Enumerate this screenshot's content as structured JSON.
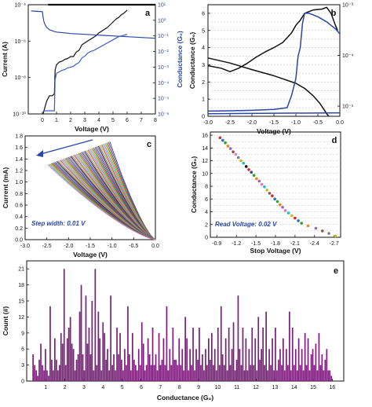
{
  "chart_data": [
    {
      "panel": "a",
      "type": "line",
      "label": "a",
      "xlabel": "Voltage (V)",
      "ylabel_left": "Current (A)",
      "ylabel_right": "Conductance (G₀)",
      "xlim": [
        -1,
        8
      ],
      "x_ticks": [
        "0",
        "1",
        "2",
        "3",
        "4",
        "5",
        "6",
        "7",
        "8"
      ],
      "ylim_left_log10": [
        -10,
        -4
      ],
      "y_left_ticks": [
        "10⁻¹⁰",
        "10⁻⁸",
        "10⁻⁶",
        "10⁻⁴"
      ],
      "ylim_right_log10": [
        -6,
        1
      ],
      "y_right_ticks": [
        "10⁻⁶",
        "10⁻⁵",
        "10⁻⁴",
        "10⁻³",
        "10⁻²",
        "10⁻¹",
        "10⁰",
        "10¹"
      ],
      "y_scale": "log",
      "series": [
        {
          "axis": "left",
          "color": "#111111",
          "x": [
            0.05,
            0.3,
            0.5,
            0.7,
            0.85,
            0.9,
            1.0,
            1.2,
            1.4,
            1.6,
            1.8,
            2.0,
            2.2,
            2.4,
            2.6,
            2.8,
            3.0,
            3.2,
            3.4,
            3.6,
            3.8,
            4.0,
            4.2,
            4.4,
            4.6,
            4.8,
            5.0,
            5.2,
            5.4,
            5.6,
            5.8,
            6.0
          ],
          "y_log10": [
            -10,
            -9.3,
            -9.0,
            -9.0,
            -8.9,
            -7.6,
            -7.3,
            -7.15,
            -7.1,
            -7.0,
            -6.95,
            -6.85,
            -6.85,
            -6.6,
            -6.5,
            -6.2,
            -6.1,
            -6.0,
            -5.9,
            -5.8,
            -5.7,
            -5.55,
            -5.45,
            -5.35,
            -5.25,
            -5.1,
            -4.95,
            -4.8,
            -4.7,
            -4.55,
            -4.45,
            -4.3
          ]
        },
        {
          "axis": "left",
          "color": "#111111",
          "x": [
            0.4,
            8.0
          ],
          "y_log10": [
            -4.0,
            -4.0
          ]
        },
        {
          "axis": "right",
          "color": "#2b45a8",
          "x": [
            -0.8,
            0.0,
            0.05,
            0.1,
            0.2,
            0.3,
            0.5,
            0.8,
            1.0,
            1.5,
            2.0,
            3.0,
            4.0,
            5.0,
            6.0,
            7.0,
            8.0
          ],
          "y_log10": [
            0.6,
            0.55,
            0.2,
            -0.05,
            -0.3,
            -0.45,
            -0.6,
            -0.7,
            -0.75,
            -0.8,
            -0.85,
            -0.9,
            -0.95,
            -1.0,
            -1.05,
            -1.1,
            -1.15
          ]
        },
        {
          "axis": "right",
          "color": "#3a5cc9",
          "x": [
            0.05,
            0.85,
            0.9,
            1.0,
            1.2,
            1.4,
            1.6,
            1.8,
            2.0,
            2.2,
            2.4,
            2.6,
            2.8,
            3.0,
            3.2,
            3.4,
            3.6,
            3.8,
            4.0,
            4.2,
            4.4,
            4.6,
            4.8,
            5.0,
            5.2,
            5.4,
            5.6,
            5.8,
            6.0
          ],
          "y_log10": [
            -5.8,
            -5.8,
            -3.8,
            -3.4,
            -3.3,
            -3.2,
            -3.15,
            -3.05,
            -3.0,
            -2.95,
            -2.8,
            -2.7,
            -2.4,
            -2.3,
            -2.1,
            -2.0,
            -1.95,
            -1.85,
            -1.75,
            -1.65,
            -1.55,
            -1.45,
            -1.35,
            -1.25,
            -1.15,
            -1.05,
            -1.0,
            -0.95,
            -0.9
          ]
        }
      ]
    },
    {
      "panel": "b",
      "type": "line",
      "label": "b",
      "xlabel": "Voltage (V)",
      "ylabel_left": "Conductance (G₀)",
      "xlim": [
        -3.0,
        0.0
      ],
      "x_ticks": [
        "-3.0",
        "-2.5",
        "-2.0",
        "-1.5",
        "-1.0",
        "-0.5",
        "0.0"
      ],
      "ylim_left": [
        0,
        6.5
      ],
      "y_left_ticks": [
        "0",
        "1",
        "2",
        "3",
        "4",
        "5",
        "6"
      ],
      "ylim_right_log10": [
        -5.2,
        -3
      ],
      "y_right_ticks": [
        "10⁻⁵",
        "10⁻⁴",
        "10⁻³"
      ],
      "grid": true,
      "series": [
        {
          "axis": "left",
          "color": "#111111",
          "x": [
            -3.0,
            -2.7,
            -2.5,
            -2.3,
            -2.1,
            -1.9,
            -1.7,
            -1.5,
            -1.3,
            -1.1,
            -1.0,
            -0.9,
            -0.8,
            -0.6,
            -0.4,
            -0.3,
            -0.2,
            -0.1,
            -0.05
          ],
          "y": [
            2.95,
            2.8,
            2.6,
            2.8,
            3.1,
            3.45,
            3.75,
            4.0,
            4.3,
            4.85,
            5.3,
            5.6,
            6.0,
            6.2,
            6.25,
            6.35,
            6.0,
            5.3,
            5.0
          ]
        },
        {
          "axis": "right",
          "color": "#111111",
          "x": [
            -3.0,
            -2.5,
            -2.0,
            -1.5,
            -1.0,
            -0.8,
            -0.6,
            -0.45,
            -0.35,
            -0.3,
            -0.25
          ],
          "y_log10": [
            -4.05,
            -4.15,
            -4.28,
            -4.4,
            -4.55,
            -4.65,
            -4.8,
            -4.95,
            -5.08,
            -5.15,
            -5.2
          ]
        },
        {
          "axis": "left",
          "color": "#2b45a8",
          "x": [
            -3.0,
            -2.5,
            -2.0,
            -1.5,
            -1.2,
            -1.1,
            -1.0,
            -0.95,
            -0.9,
            -0.85,
            -0.8,
            -0.7,
            -0.5,
            -0.3,
            -0.1,
            0.0
          ],
          "y": [
            0.3,
            0.32,
            0.35,
            0.4,
            0.5,
            1.2,
            2.2,
            3.5,
            4.0,
            5.4,
            6.0,
            6.0,
            5.8,
            5.5,
            5.1,
            4.8
          ]
        },
        {
          "axis": "left",
          "color": "#2b45a8",
          "x": [
            -3.0,
            0.0
          ],
          "y": [
            0.15,
            0.2
          ]
        }
      ]
    },
    {
      "panel": "c",
      "type": "line",
      "label": "c",
      "xlabel": "Voltage (V)",
      "ylabel": "Current (mA)",
      "xlim": [
        -3.0,
        0.0
      ],
      "x_ticks": [
        "-3.0",
        "-2.5",
        "-2.0",
        "-1.5",
        "-1.0",
        "-0.5",
        "0.0"
      ],
      "ylim": [
        0,
        1.8
      ],
      "y_ticks": [
        "0.0",
        "0.2",
        "0.4",
        "0.6",
        "0.8",
        "1.0",
        "1.2",
        "1.4",
        "1.6",
        "1.8"
      ],
      "annotation": "Step width: 0.01 V",
      "curve_family": {
        "count": 55,
        "stop_voltage_range": [
          -2.48,
          -1.05
        ],
        "end_current_range": [
          1.3,
          1.7
        ]
      }
    },
    {
      "panel": "d",
      "type": "scatter",
      "label": "d",
      "xlabel": "Stop Voltage (V)",
      "ylabel": "Conductance (G₀)",
      "xlim": [
        -0.8,
        -2.8
      ],
      "x_ticks": [
        "-0.9",
        "-1.2",
        "-1.5",
        "-1.8",
        "-2.1",
        "-2.4",
        "-2.7"
      ],
      "ylim": [
        0,
        16.5
      ],
      "y_ticks": [
        "0",
        "2",
        "4",
        "6",
        "8",
        "10",
        "12",
        "14",
        "16"
      ],
      "grid": true,
      "annotation": "Read Voltage: 0.02 V",
      "x": [
        -0.95,
        -0.99,
        -1.03,
        -1.07,
        -1.11,
        -1.15,
        -1.19,
        -1.23,
        -1.27,
        -1.31,
        -1.35,
        -1.39,
        -1.43,
        -1.47,
        -1.51,
        -1.55,
        -1.59,
        -1.63,
        -1.67,
        -1.71,
        -1.75,
        -1.79,
        -1.83,
        -1.87,
        -1.91,
        -1.95,
        -2.0,
        -2.05,
        -2.1,
        -2.15,
        -2.2,
        -2.3,
        -2.42,
        -2.52,
        -2.62,
        -2.72
      ],
      "y": [
        15.6,
        15.2,
        14.8,
        14.3,
        13.9,
        13.4,
        13.0,
        12.5,
        12.0,
        11.6,
        11.1,
        10.6,
        10.2,
        9.7,
        9.2,
        8.8,
        8.3,
        7.9,
        7.4,
        6.9,
        6.5,
        6.0,
        5.6,
        5.1,
        4.7,
        4.2,
        3.8,
        3.4,
        3.0,
        2.6,
        2.2,
        1.8,
        1.4,
        1.0,
        0.6,
        0.2
      ],
      "point_colors": [
        "#d62728",
        "#1f77b4",
        "#2ca02c",
        "#ff7f0e",
        "#9467bd",
        "#8c564b",
        "#e377c2",
        "#7f7f7f",
        "#bcbd22",
        "#17becf",
        "#111111",
        "#d62728",
        "#2b45a8",
        "#2ca02c",
        "#ff7f0e",
        "#9467bd",
        "#e377c2",
        "#17becf",
        "#bcbd22",
        "#8c564b",
        "#d62728",
        "#1f77b4",
        "#2ca02c",
        "#ff7f0e",
        "#9467bd",
        "#e377c2",
        "#17becf",
        "#bcbd22",
        "#d62728",
        "#1f77b4",
        "#2ca02c",
        "#ff7f0e",
        "#9467bd",
        "#8c564b",
        "#7f7f7f",
        "#bcbd22"
      ]
    },
    {
      "panel": "e",
      "type": "bar",
      "label": "e",
      "xlabel": "Conductance (G₀)",
      "ylabel": "Count (#)",
      "xlim": [
        0,
        16.6
      ],
      "x_ticks": [
        "1",
        "2",
        "3",
        "4",
        "5",
        "6",
        "7",
        "8",
        "9",
        "10",
        "11",
        "12",
        "13",
        "14",
        "15",
        "16"
      ],
      "ylim": [
        0,
        22.5
      ],
      "y_ticks": [
        "0",
        "3",
        "6",
        "9",
        "12",
        "15",
        "18",
        "21"
      ],
      "color": "#7b1f7b",
      "bin_width": 0.1,
      "counts": [
        5,
        3,
        2,
        1,
        4,
        7,
        3,
        2,
        6,
        2,
        1,
        14,
        4,
        2,
        8,
        4,
        2,
        3,
        9,
        7,
        21,
        3,
        8,
        10,
        12,
        7,
        6,
        2,
        4,
        5,
        13,
        18,
        5,
        2,
        16,
        7,
        10,
        5,
        15,
        2,
        21,
        3,
        13,
        8,
        2,
        11,
        9,
        4,
        6,
        2,
        16,
        3,
        5,
        2,
        10,
        5,
        9,
        4,
        2,
        6,
        3,
        14,
        5,
        2,
        9,
        4,
        3,
        2,
        6,
        3,
        11,
        7,
        2,
        3,
        8,
        5,
        3,
        10,
        3,
        5,
        2,
        9,
        3,
        4,
        8,
        3,
        14,
        2,
        6,
        3,
        10,
        4,
        4,
        3,
        8,
        3,
        6,
        2,
        12,
        8,
        2,
        6,
        3,
        10,
        2,
        6,
        4,
        10,
        3,
        5,
        2,
        6,
        3,
        8,
        4,
        9,
        3,
        6,
        2,
        10,
        3,
        14,
        5,
        3,
        8,
        2,
        10,
        3,
        6,
        11,
        2,
        4,
        16,
        6,
        3,
        10,
        2,
        8,
        2,
        6,
        3,
        10,
        3,
        8,
        2,
        12,
        4,
        6,
        10,
        3,
        13,
        2,
        6,
        3,
        8,
        2,
        10,
        2,
        4,
        6,
        3,
        8,
        2,
        6,
        3,
        13,
        2,
        10,
        3,
        6,
        2,
        8,
        3,
        6,
        2,
        9,
        3,
        8,
        2,
        5,
        6,
        3,
        7,
        2,
        9,
        3,
        5,
        2,
        4,
        6,
        2,
        2,
        1
      ]
    }
  ]
}
